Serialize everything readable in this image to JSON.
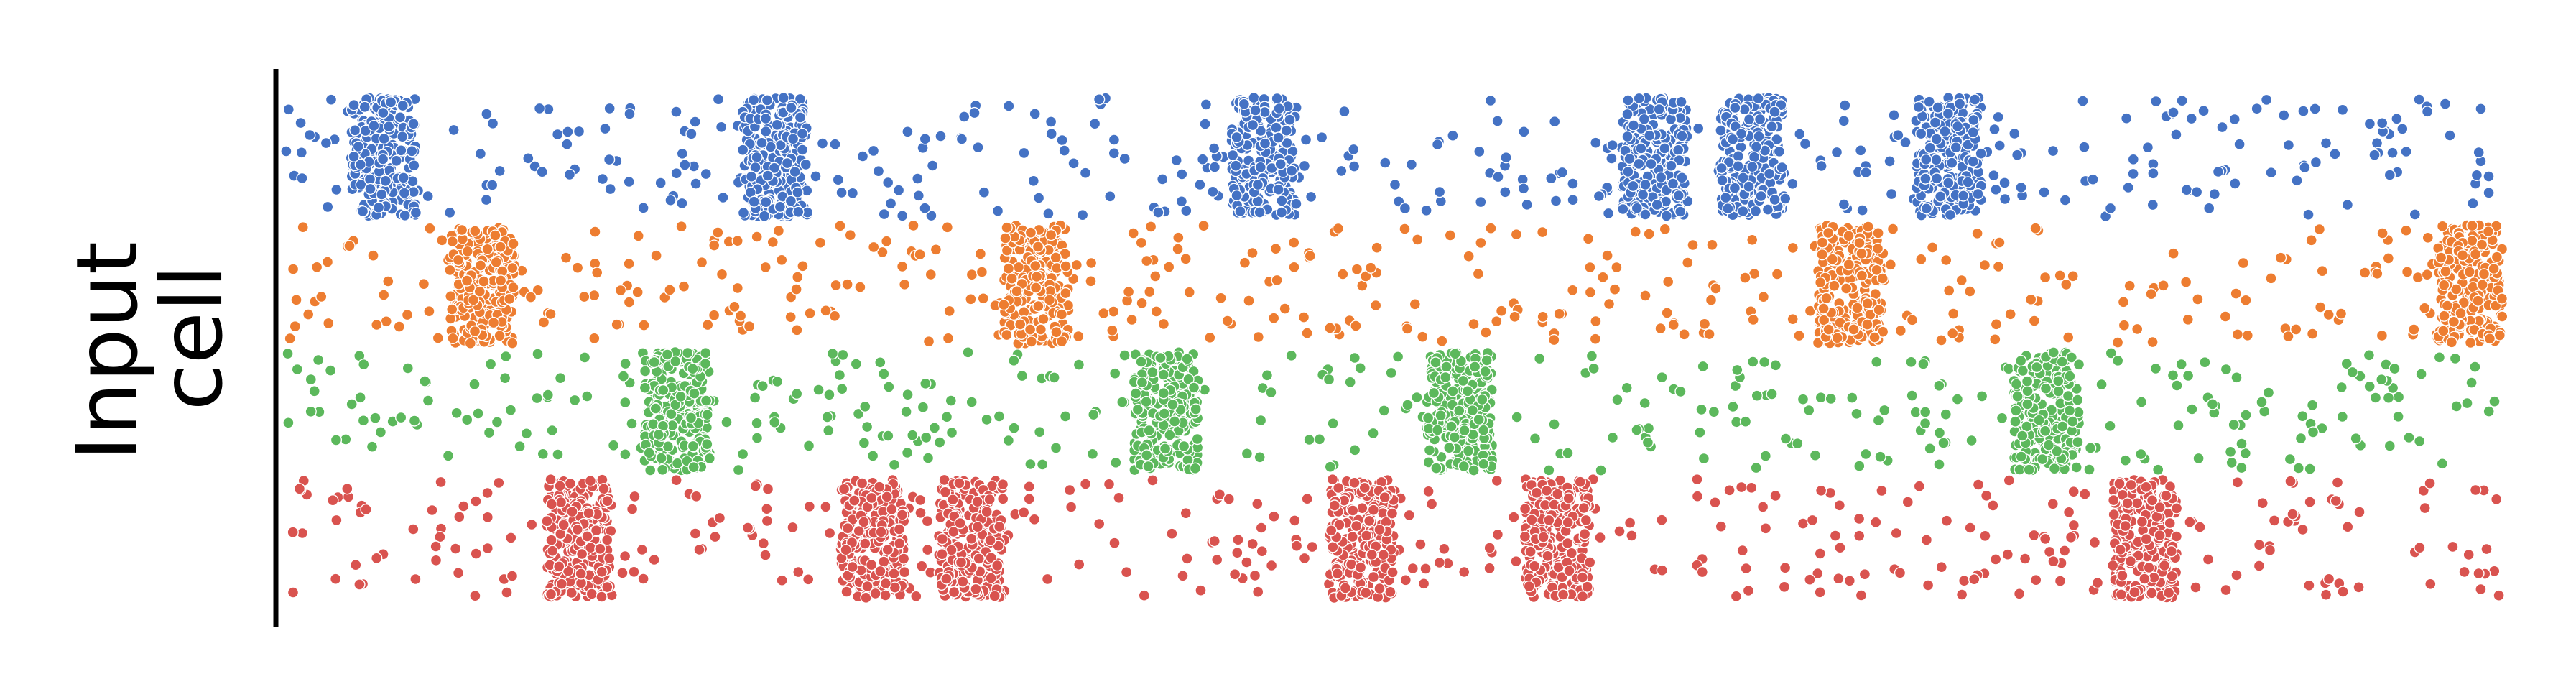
{
  "chart_data": {
    "type": "scatter",
    "ylabel_lines": [
      "Input",
      "cell"
    ],
    "xlabel": "",
    "title": "",
    "axis": {
      "left_spine": true,
      "bottom_spine": false,
      "ticks": false,
      "grid": false,
      "legend": "none"
    },
    "xlim": [
      0,
      34
    ],
    "ylim": [
      0,
      4
    ],
    "rows": [
      {
        "row": 0,
        "color": "#4472c4",
        "bursts": [
          [
            1,
            2
          ],
          [
            7,
            8
          ],
          [
            14.5,
            15.5
          ],
          [
            20.5,
            21.5
          ],
          [
            22,
            23
          ],
          [
            25,
            26
          ]
        ]
      },
      {
        "row": 1,
        "color": "#ed7d31",
        "bursts": [
          [
            2.5,
            3.5
          ],
          [
            11,
            12
          ],
          [
            23.5,
            24.5
          ],
          [
            33,
            34
          ]
        ]
      },
      {
        "row": 2,
        "color": "#5cb85c",
        "bursts": [
          [
            5.5,
            6.5
          ],
          [
            13,
            14
          ],
          [
            17.5,
            18.5
          ],
          [
            26.5,
            27.5
          ]
        ]
      },
      {
        "row": 3,
        "color": "#d9534f",
        "bursts": [
          [
            4,
            5
          ],
          [
            8.5,
            9.5
          ],
          [
            10,
            11
          ],
          [
            16,
            17
          ],
          [
            19,
            20
          ],
          [
            28,
            29
          ]
        ]
      }
    ],
    "background_rate_per_unit": 11,
    "burst_density": "dense"
  }
}
